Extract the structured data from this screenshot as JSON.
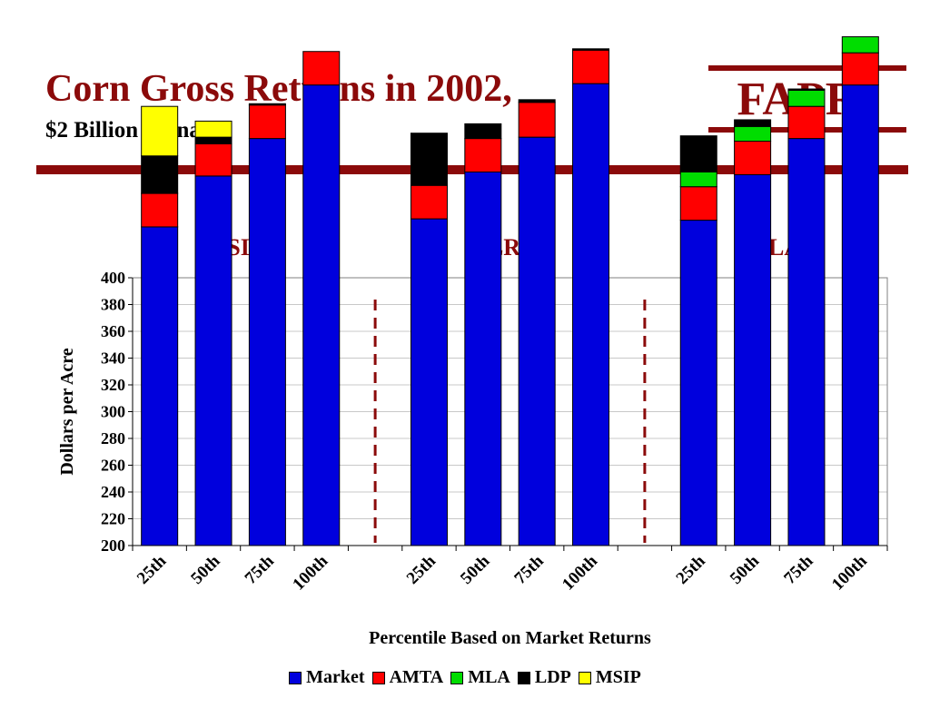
{
  "header": {
    "title": "Corn Gross Returns in 2002,",
    "subtitle": "$2 Billion Scenario",
    "logo": "FAPRI"
  },
  "chart_data": {
    "type": "bar",
    "stacked": true,
    "ylabel": "Dollars per Acre",
    "xlabel": "Percentile Based on Market Returns",
    "ylim": [
      200,
      400
    ],
    "yticks": [
      200,
      220,
      240,
      260,
      280,
      300,
      320,
      340,
      360,
      380,
      400
    ],
    "grid": true,
    "legend_placement": "bottom",
    "groups": [
      {
        "name": "MSIP2",
        "categories": [
          "25th",
          "50th",
          "75th",
          "100th"
        ]
      },
      {
        "name": "LR2",
        "categories": [
          "25th",
          "50th",
          "75th",
          "100th"
        ]
      },
      {
        "name": "MLA2",
        "categories": [
          "25th",
          "50th",
          "75th",
          "100th"
        ]
      }
    ],
    "series": [
      {
        "name": "Market",
        "color": "#0000dd",
        "values": [
          [
            238,
            276,
            304,
            344
          ],
          [
            244,
            279,
            305,
            345
          ],
          [
            243,
            277,
            304,
            344
          ]
        ]
      },
      {
        "name": "AMTA",
        "color": "#ff0000",
        "values": [
          [
            25,
            24,
            25,
            25
          ],
          [
            25,
            25,
            26,
            25
          ],
          [
            25,
            25,
            24,
            24
          ]
        ]
      },
      {
        "name": "MLA",
        "color": "#00dd00",
        "values": [
          [
            0,
            0,
            0,
            0
          ],
          [
            0,
            0,
            0,
            0
          ],
          [
            11,
            11,
            12,
            12
          ]
        ]
      },
      {
        "name": "LDP",
        "color": "#000000",
        "values": [
          [
            28,
            5,
            1,
            0
          ],
          [
            39,
            11,
            2,
            1
          ],
          [
            27,
            5,
            1,
            0
          ]
        ]
      },
      {
        "name": "MSIP",
        "color": "#ffff00",
        "values": [
          [
            37,
            12,
            0,
            0
          ],
          [
            0,
            0,
            0,
            0
          ],
          [
            0,
            0,
            0,
            0
          ]
        ]
      }
    ]
  }
}
